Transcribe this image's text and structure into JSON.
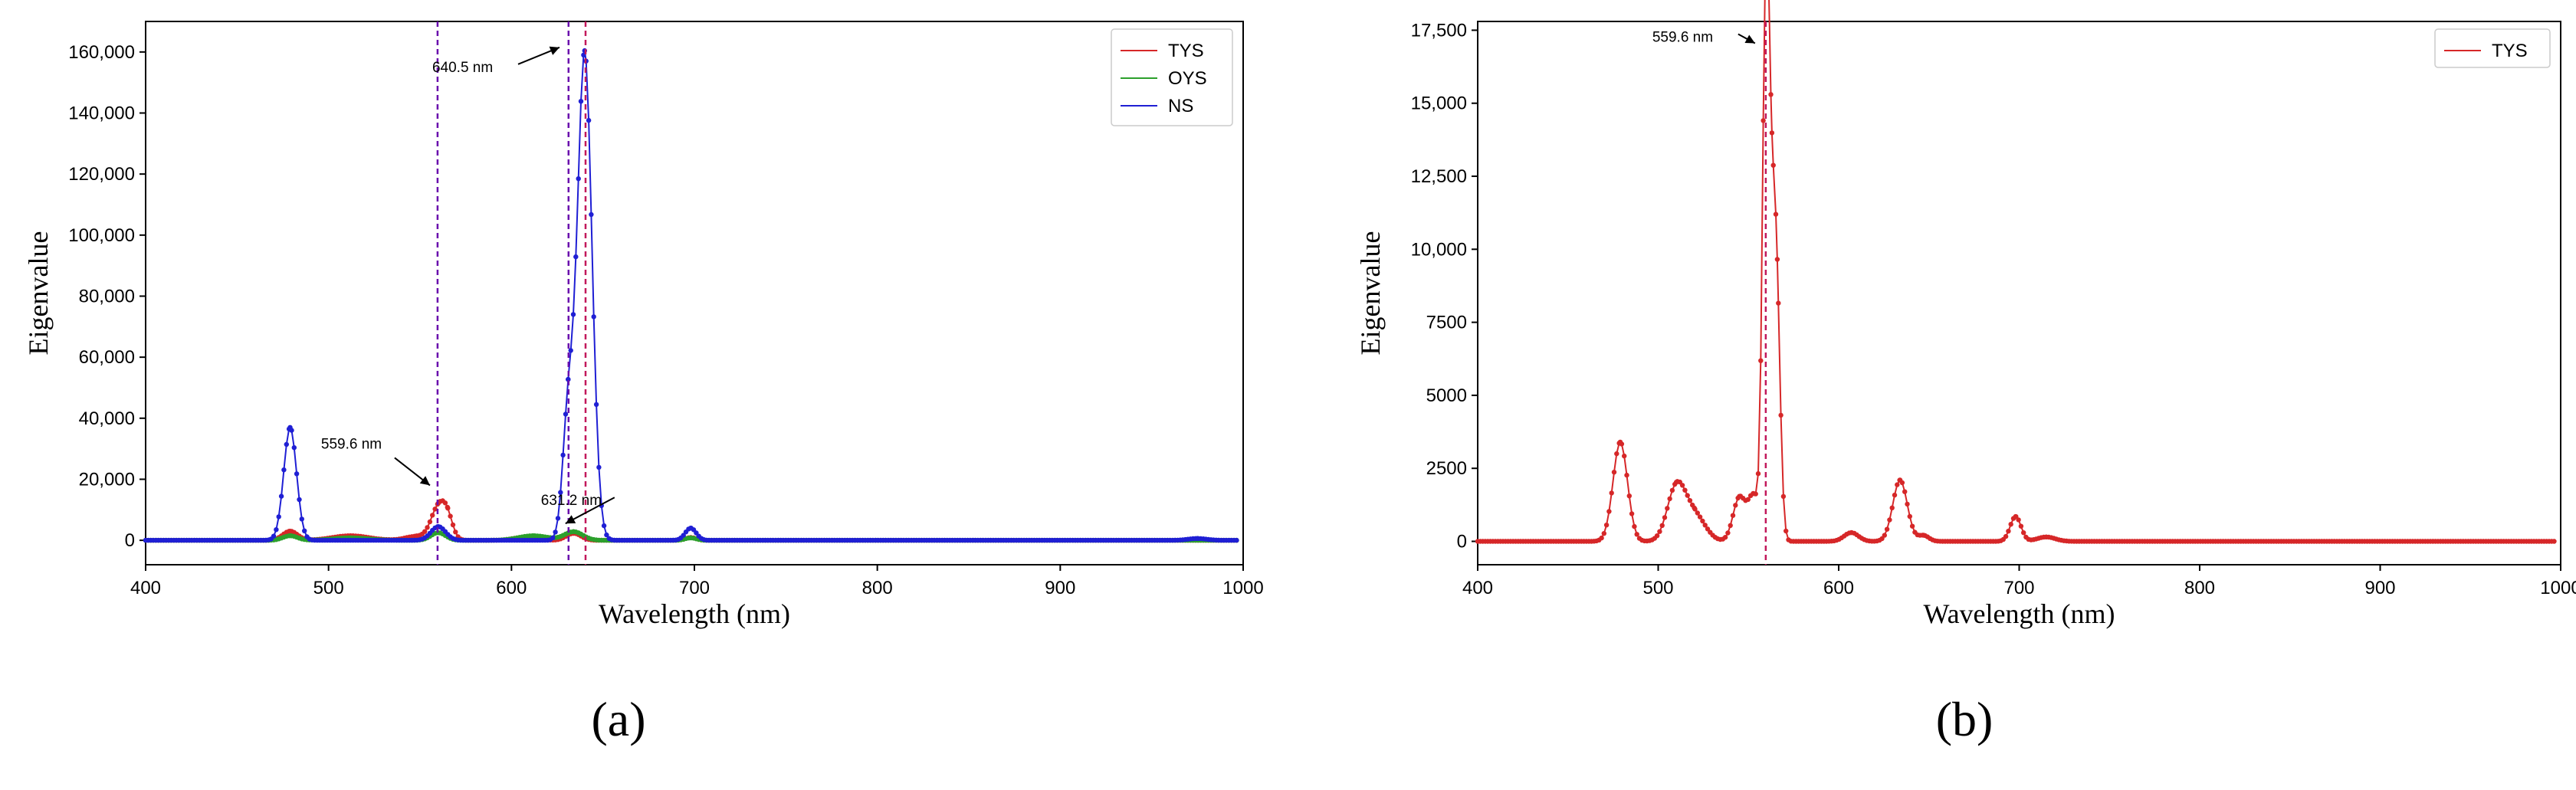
{
  "chart_data": [
    {
      "panel_label": "(a)",
      "type": "line",
      "xlabel": "Wavelength (nm)",
      "ylabel": "Eigenvalue",
      "xlim": [
        400,
        1000
      ],
      "ylim": [
        -8000,
        170000
      ],
      "xticks": [
        "400",
        "500",
        "600",
        "700",
        "800",
        "900",
        "1000"
      ],
      "yticks": [
        "0",
        "20,000",
        "40,000",
        "60,000",
        "80,000",
        "100,000",
        "120,000",
        "140,000",
        "160,000"
      ],
      "grid": false,
      "legend_position": "top-right",
      "series": [
        {
          "name": "TYS",
          "color": "#d62728",
          "peaks": [
            [
              479,
              3000,
              4
            ],
            [
              512,
              1500,
              10
            ],
            [
              548,
              1300,
              6
            ],
            [
              560,
              10500,
              4
            ],
            [
              565,
              6000,
              3
            ],
            [
              607,
              1000,
              6
            ],
            [
              634,
              2300,
              4
            ],
            [
              698,
              900,
              3
            ]
          ]
        },
        {
          "name": "OYS",
          "color": "#2ca02c",
          "peaks": [
            [
              479,
              1500,
              4
            ],
            [
              512,
              800,
              10
            ],
            [
              560,
              2500,
              4
            ],
            [
              612,
              1500,
              8
            ],
            [
              634,
              2800,
              5
            ],
            [
              698,
              800,
              3
            ]
          ]
        },
        {
          "name": "NS",
          "color": "#1f1fd4",
          "peaks": [
            [
              479,
              37000,
              3.5
            ],
            [
              560,
              4500,
              4
            ],
            [
              631,
              40000,
              3
            ],
            [
              640,
              160000,
              4
            ],
            [
              698,
              4000,
              3
            ],
            [
              975,
              600,
              5
            ]
          ]
        }
      ],
      "vlines": [
        {
          "x": 559.6,
          "color": "#6a0dad"
        },
        {
          "x": 631.2,
          "color": "#6a0dad"
        },
        {
          "x": 640.5,
          "color": "#c2185b"
        }
      ],
      "annotations": [
        {
          "text": "640.5 nm",
          "x": 640.5,
          "y": 160000
        },
        {
          "text": "559.6 nm",
          "x": 559.6,
          "y": 16000
        },
        {
          "text": "631.2 nm",
          "x": 631.2,
          "y": 4000
        }
      ]
    },
    {
      "panel_label": "(b)",
      "type": "line",
      "xlabel": "Wavelength (nm)",
      "ylabel": "Eigenvalue",
      "xlim": [
        400,
        1000
      ],
      "ylim": [
        -800,
        17800
      ],
      "xticks": [
        "400",
        "500",
        "600",
        "700",
        "800",
        "900",
        "1000"
      ],
      "yticks": [
        "0",
        "2500",
        "5000",
        "7500",
        "10,000",
        "12,500",
        "15,000",
        "17,500"
      ],
      "grid": false,
      "legend_position": "top-right",
      "series": [
        {
          "name": "TYS",
          "color": "#d62728",
          "peaks": [
            [
              479,
              3400,
              4
            ],
            [
              510,
              1800,
              5
            ],
            [
              520,
              900,
              6
            ],
            [
              545,
              1500,
              3.5
            ],
            [
              553,
              1500,
              3
            ],
            [
              559.6,
              17000,
              1.8
            ],
            [
              563,
              9500,
              2.5
            ],
            [
              566,
              5000,
              2
            ],
            [
              607,
              300,
              4
            ],
            [
              634,
              2100,
              4
            ],
            [
              647,
              200,
              3
            ],
            [
              698,
              850,
              3
            ],
            [
              715,
              150,
              5
            ]
          ]
        }
      ],
      "vlines": [
        {
          "x": 559.6,
          "color": "#c2185b"
        }
      ],
      "annotations": [
        {
          "text": "559.6 nm",
          "x": 559.6,
          "y": 17000
        }
      ]
    }
  ]
}
